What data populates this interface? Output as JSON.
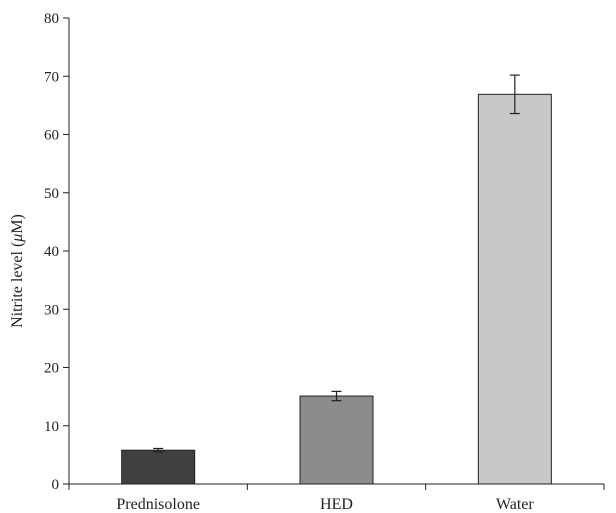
{
  "chart_data": {
    "type": "bar",
    "title": "",
    "xlabel": "",
    "ylabel": "Nitrite level (",
    "ylabel_symbol": "μ",
    "ylabel_unit_tail": "M)",
    "categories": [
      "Prednisolone",
      "HED",
      "Water"
    ],
    "values": [
      5.8,
      15.1,
      66.9
    ],
    "errors": [
      0.3,
      0.8,
      3.3
    ],
    "ylim": [
      0,
      80
    ],
    "yticks": [
      0,
      10,
      20,
      30,
      40,
      50,
      60,
      70,
      80
    ],
    "grid": false,
    "legend": "none",
    "bar_colors": [
      "#404040",
      "#8c8c8c",
      "#c8c8c8"
    ],
    "axis_color": "#231f20"
  }
}
